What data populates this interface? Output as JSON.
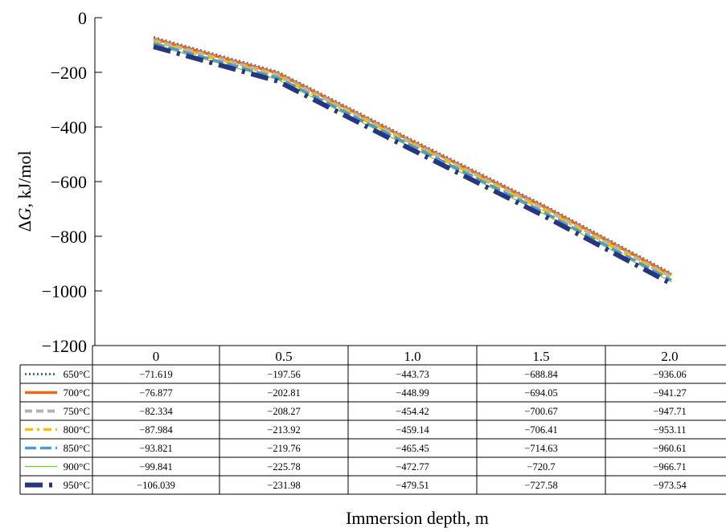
{
  "chart_data": {
    "type": "line",
    "categories": [
      "0",
      "0.5",
      "1.0",
      "1.5",
      "2.0"
    ],
    "x": [
      0,
      0.5,
      1.0,
      1.5,
      2.0
    ],
    "xlabel": "Immersion depth, m",
    "ylabel": "ΔG, kJ/mol",
    "ylim": [
      -1200,
      0
    ],
    "yticks": [
      0,
      -200,
      -400,
      -600,
      -800,
      -1000,
      -1200
    ],
    "ytick_labels": [
      "0",
      "−200",
      "−400",
      "−600",
      "−800",
      "−1000",
      "−1200"
    ],
    "grid": false,
    "legend_placement": "data table rows below plot",
    "series": [
      {
        "name": "650°C",
        "color": "#3b6fb6",
        "dash": "dotted",
        "values": [
          -71.619,
          -197.56,
          -443.73,
          -688.84,
          -936.06
        ],
        "labels": [
          "−71.619",
          "−197.56",
          "−443.73",
          "−688.84",
          "−936.06"
        ]
      },
      {
        "name": "700°C",
        "color": "#e46b1e",
        "dash": "solid",
        "values": [
          -76.877,
          -202.81,
          -448.99,
          -694.05,
          -941.27
        ],
        "labels": [
          "−76.877",
          "−202.81",
          "−448.99",
          "−694.05",
          "−941.27"
        ]
      },
      {
        "name": "750°C",
        "color": "#b3b3b3",
        "dash": "dashed",
        "values": [
          -82.334,
          -208.27,
          -454.42,
          -700.67,
          -947.71
        ],
        "labels": [
          "−82.334",
          "−208.27",
          "−454.42",
          "−700.67",
          "−947.71"
        ]
      },
      {
        "name": "800°C",
        "color": "#f2c200",
        "dash": "dashdot",
        "values": [
          -87.984,
          -213.92,
          -459.14,
          -706.41,
          -953.11
        ],
        "labels": [
          "−87.984",
          "−213.92",
          "−459.14",
          "−706.41",
          "−953.11"
        ]
      },
      {
        "name": "850°C",
        "color": "#4f9ad6",
        "dash": "longdash",
        "values": [
          -93.821,
          -219.76,
          -465.45,
          -714.63,
          -960.61
        ],
        "labels": [
          "−93.821",
          "−219.76",
          "−465.45",
          "−714.63",
          "−960.61"
        ]
      },
      {
        "name": "900°C",
        "color": "#7cc242",
        "dash": "thin",
        "values": [
          -99.841,
          -225.78,
          -472.77,
          -720.7,
          -966.71
        ],
        "labels": [
          "−99.841",
          "−225.78",
          "−472.77",
          "−720.7",
          "−966.71"
        ]
      },
      {
        "name": "950°C",
        "color": "#27367e",
        "dash": "thickdashdot",
        "values": [
          -106.039,
          -231.98,
          -479.51,
          -727.58,
          -973.54
        ],
        "labels": [
          "−106.039",
          "−231.98",
          "−479.51",
          "−727.58",
          "−973.54"
        ]
      }
    ]
  }
}
